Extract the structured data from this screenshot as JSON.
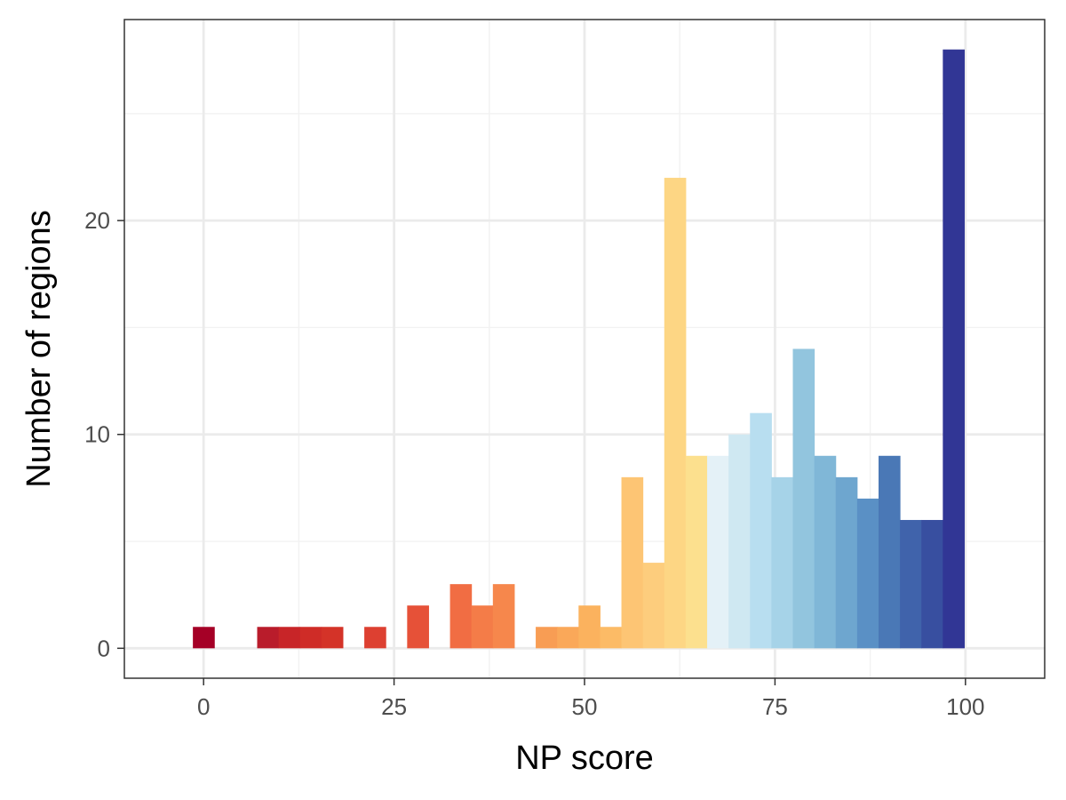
{
  "chart_data": {
    "type": "bar",
    "xlabel": "NP score",
    "ylabel": "Number of regions",
    "xlim": [
      -10.4,
      110.4
    ],
    "ylim": [
      -1.4,
      29.4
    ],
    "x_ticks": [
      0,
      25,
      50,
      75,
      100
    ],
    "x_tick_labels": [
      "0",
      "25",
      "50",
      "75",
      "100"
    ],
    "y_ticks": [
      0,
      10,
      20
    ],
    "y_tick_labels": [
      "0",
      "10",
      "20"
    ],
    "grid": true,
    "legend": "none",
    "bin_width": 2.8125,
    "bins": [
      {
        "x": 0.0,
        "count": 1,
        "color": "#a50026"
      },
      {
        "x": 8.4375,
        "count": 1,
        "color": "#b91c2b"
      },
      {
        "x": 11.25,
        "count": 1,
        "color": "#c82528"
      },
      {
        "x": 14.0625,
        "count": 1,
        "color": "#cf2c27"
      },
      {
        "x": 16.875,
        "count": 1,
        "color": "#d43328"
      },
      {
        "x": 22.5,
        "count": 1,
        "color": "#dd4031"
      },
      {
        "x": 28.125,
        "count": 2,
        "color": "#e65138"
      },
      {
        "x": 33.75,
        "count": 3,
        "color": "#f16d43"
      },
      {
        "x": 36.5625,
        "count": 2,
        "color": "#f47c48"
      },
      {
        "x": 39.375,
        "count": 3,
        "color": "#f6874c"
      },
      {
        "x": 45.0,
        "count": 1,
        "color": "#f89d54"
      },
      {
        "x": 47.8125,
        "count": 1,
        "color": "#faa859"
      },
      {
        "x": 50.625,
        "count": 2,
        "color": "#fbb25e"
      },
      {
        "x": 53.4375,
        "count": 1,
        "color": "#fcbb66"
      },
      {
        "x": 56.25,
        "count": 8,
        "color": "#fdc574"
      },
      {
        "x": 59.0625,
        "count": 4,
        "color": "#fdcd7d"
      },
      {
        "x": 61.875,
        "count": 22,
        "color": "#fdd684"
      },
      {
        "x": 64.6875,
        "count": 9,
        "color": "#fce08e"
      },
      {
        "x": 67.5,
        "count": 9,
        "color": "#e4f1f7"
      },
      {
        "x": 70.3125,
        "count": 10,
        "color": "#cfe8f2"
      },
      {
        "x": 73.125,
        "count": 11,
        "color": "#b8def0"
      },
      {
        "x": 75.9375,
        "count": 8,
        "color": "#a6d3e8"
      },
      {
        "x": 78.75,
        "count": 14,
        "color": "#92c5de"
      },
      {
        "x": 81.5625,
        "count": 9,
        "color": "#80b7d7"
      },
      {
        "x": 84.375,
        "count": 8,
        "color": "#6ea6cf"
      },
      {
        "x": 87.1875,
        "count": 7,
        "color": "#5a90c5"
      },
      {
        "x": 90.0,
        "count": 9,
        "color": "#4a78b6"
      },
      {
        "x": 92.8125,
        "count": 6,
        "color": "#4063ab"
      },
      {
        "x": 95.625,
        "count": 6,
        "color": "#384fa0"
      },
      {
        "x": 98.4375,
        "count": 28,
        "color": "#313695"
      }
    ]
  },
  "colors": {
    "panel_border": "#333333",
    "grid_major": "#ebebeb",
    "grid_minor": "#f2f2f2",
    "tick_text": "#4d4d4d"
  }
}
